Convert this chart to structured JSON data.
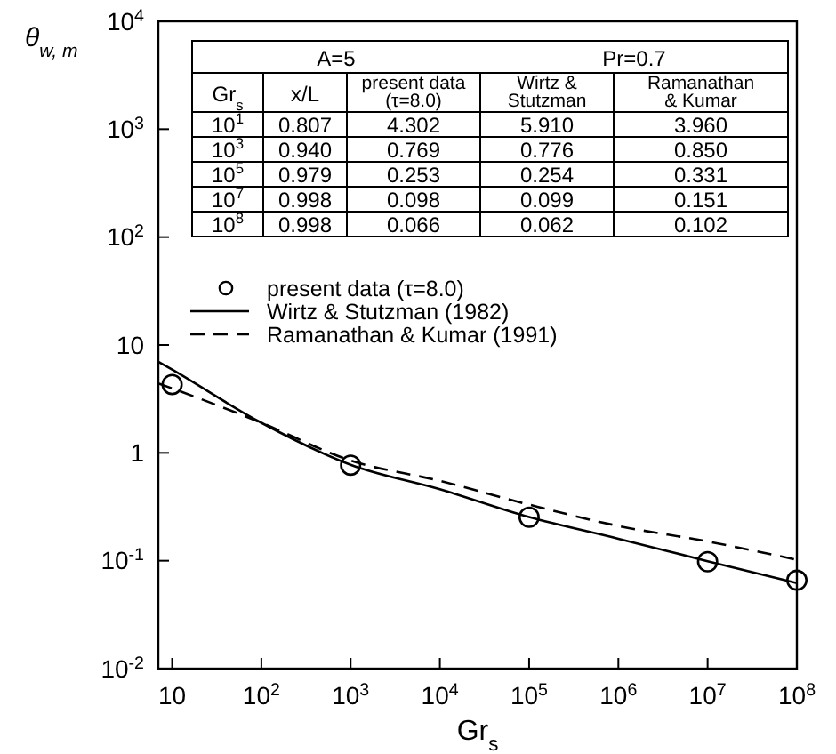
{
  "chart_data": {
    "type": "scatter",
    "xlabel": "Gr$_{s}$",
    "ylabel": "θ$_{w, m}$",
    "log": "xy",
    "xlim": [
      7,
      100000000
    ],
    "ylim": [
      0.01,
      10000
    ],
    "xticks": [
      10,
      {
        "value": 100,
        "label": "10$^{2}$"
      },
      {
        "value": 1000,
        "label": "10$^{3}$"
      },
      {
        "value": 10000,
        "label": "10$^{4}$"
      },
      {
        "value": 100000,
        "label": "10$^{5}$"
      },
      {
        "value": 1000000,
        "label": "10$^{6}$"
      },
      {
        "value": 10000000,
        "label": "10$^{7}$"
      },
      {
        "value": 100000000,
        "label": "10$^{8}$"
      }
    ],
    "yticks": [
      {
        "value": 0.01,
        "label": "10$^{-2}$"
      },
      {
        "value": 0.1,
        "label": "10$^{-1}$"
      },
      1,
      10,
      {
        "value": 100,
        "label": "10$^{2}$"
      },
      {
        "value": 1000,
        "label": "10$^{3}$"
      },
      {
        "value": 10000,
        "label": "10$^{4}$"
      }
    ],
    "grid": false,
    "legend": "left",
    "series": [
      {
        "name": "present data (τ=8.0)",
        "marker": "circle",
        "color": "#000000",
        "x": [
          10,
          1000,
          100000,
          10000000,
          100000000
        ],
        "values": [
          4.302,
          0.769,
          0.253,
          0.098,
          0.066
        ]
      },
      {
        "name": "Wirtz & Stutzman (1982)",
        "type": "line",
        "line_style": "solid",
        "color": "#000000",
        "x": [
          7,
          10,
          100,
          1000,
          10000,
          100000,
          1000000,
          10000000,
          100000000
        ],
        "values": [
          7.0,
          5.91,
          1.9,
          0.776,
          0.46,
          0.254,
          0.16,
          0.099,
          0.062
        ]
      },
      {
        "name": "Ramanathan & Kumar (1991)",
        "type": "line",
        "line_style": "dashed",
        "color": "#000000",
        "x": [
          7,
          10,
          100,
          1000,
          10000,
          100000,
          1000000,
          10000000,
          100000000
        ],
        "values": [
          4.4,
          3.96,
          1.9,
          0.85,
          0.55,
          0.331,
          0.21,
          0.151,
          0.102
        ]
      }
    ],
    "annotations": [
      "A=5",
      "Pr=0.7",
      "Gr$_{s}$",
      "x/L",
      "present data (τ=8.0)",
      "Wirtz & Stutzman",
      "Ramanathan & Kumar",
      "10$^{1}$",
      "10$^{3}$",
      "10$^{5}$",
      "10$^{7}$",
      "10$^{8}$",
      "0.807",
      "0.940",
      "0.979",
      "0.998",
      "0.998",
      "4.302",
      "5.910",
      "3.960",
      "0.769",
      "0.776",
      "0.850",
      "0.253",
      "0.254",
      "0.331",
      "0.098",
      "0.099",
      "0.151",
      "0.066",
      "0.062",
      "0.102"
    ]
  }
}
